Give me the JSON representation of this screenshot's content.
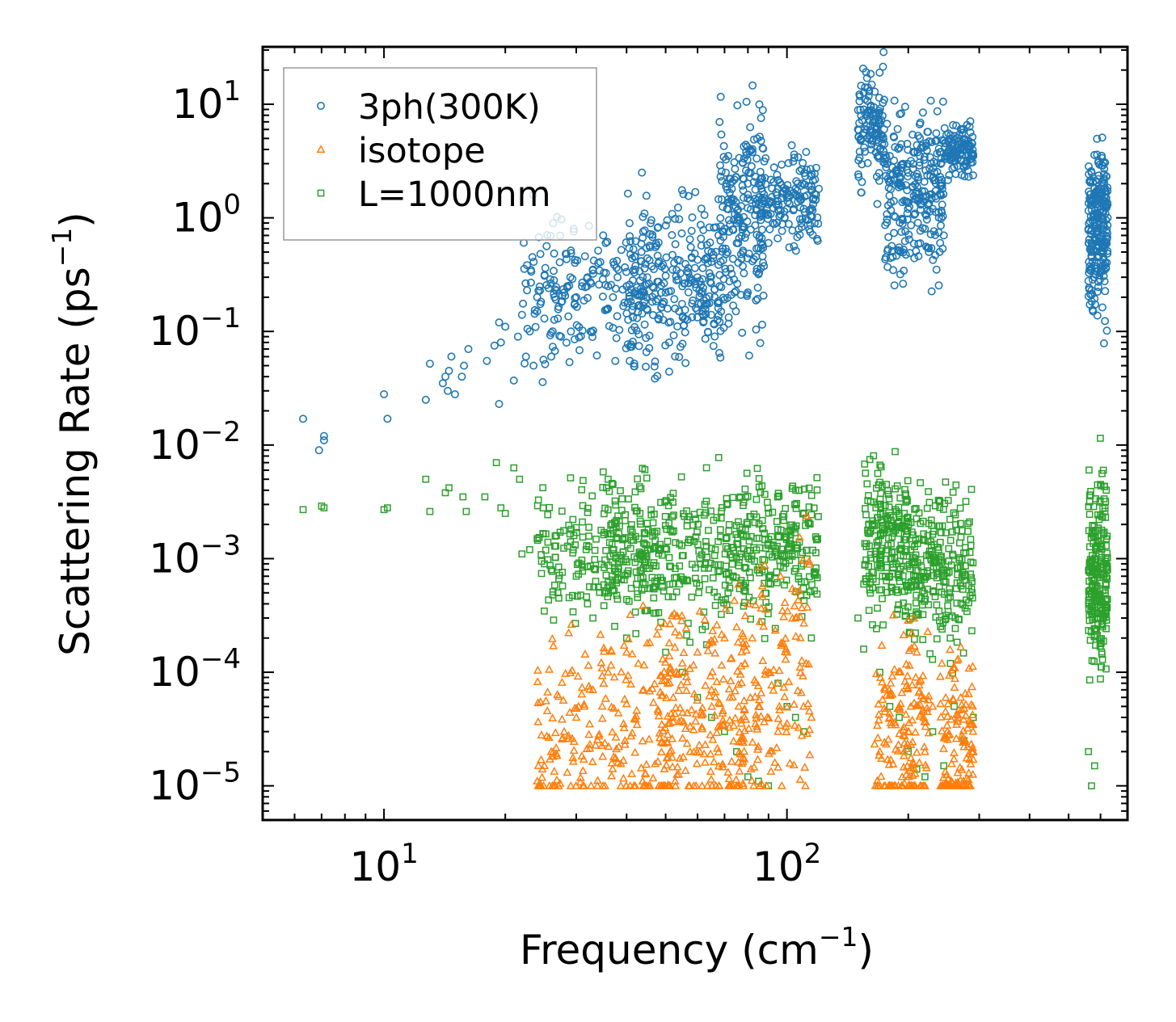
{
  "chart_data": {
    "type": "scatter",
    "xscale": "log",
    "yscale": "log",
    "xlabel": "Frequency (cm",
    "xlabel_sup": "−1",
    "xlabel_tail": ")",
    "ylabel": "Scattering Rate (ps",
    "ylabel_sup": "−1",
    "ylabel_tail": ")",
    "xlim": [
      5,
      700
    ],
    "ylim": [
      5e-06,
      32
    ],
    "xticks": [
      {
        "value": 10,
        "base": "10",
        "exp": "1"
      },
      {
        "value": 100,
        "base": "10",
        "exp": "2"
      }
    ],
    "yticks": [
      {
        "value": 1e-05,
        "base": "10",
        "exp": "−5"
      },
      {
        "value": 0.0001,
        "base": "10",
        "exp": "−4"
      },
      {
        "value": 0.001,
        "base": "10",
        "exp": "−3"
      },
      {
        "value": 0.01,
        "base": "10",
        "exp": "−2"
      },
      {
        "value": 0.1,
        "base": "10",
        "exp": "−1"
      },
      {
        "value": 1,
        "base": "10",
        "exp": "0"
      },
      {
        "value": 10,
        "base": "10",
        "exp": "1"
      }
    ],
    "legend_position": "top-left",
    "series": [
      {
        "name": "3ph(300K)",
        "marker": "circle",
        "color": "#1f77b4",
        "points": [
          [
            6.3,
            0.017
          ],
          [
            6.9,
            0.009
          ],
          [
            7.1,
            0.011
          ],
          [
            7.1,
            0.012
          ],
          [
            10,
            0.028
          ],
          [
            10.2,
            0.017
          ],
          [
            12.7,
            0.025
          ],
          [
            13,
            0.052
          ],
          [
            14,
            0.035
          ],
          [
            14.2,
            0.04
          ],
          [
            14.4,
            0.03
          ],
          [
            14.5,
            0.045
          ],
          [
            14.7,
            0.06
          ],
          [
            15,
            0.028
          ],
          [
            15.6,
            0.04
          ],
          [
            15.8,
            0.05
          ],
          [
            16.2,
            0.07
          ],
          [
            18,
            0.055
          ],
          [
            18.8,
            0.075
          ],
          [
            19.3,
            0.12
          ],
          [
            19.5,
            0.08
          ],
          [
            19.3,
            0.023
          ],
          [
            20,
            0.11
          ],
          [
            21,
            0.037
          ],
          [
            21.5,
            0.09
          ],
          [
            22,
            0.14
          ],
          [
            22.5,
            0.06
          ],
          [
            23,
            0.1
          ],
          [
            23.5,
            0.05
          ],
          [
            24,
            0.2
          ],
          [
            24,
            0.15
          ],
          [
            25,
            0.13
          ],
          [
            26,
            0.06
          ],
          [
            26.5,
            0.2
          ],
          [
            27,
            0.13
          ],
          [
            27.5,
            0.09
          ],
          [
            28,
            0.22
          ],
          [
            28.5,
            0.25
          ],
          [
            29,
            0.3
          ],
          [
            30,
            0.2
          ],
          [
            31,
            0.25
          ],
          [
            32,
            0.3
          ],
          [
            33,
            0.35
          ],
          [
            34,
            0.4
          ],
          [
            35,
            0.7
          ],
          [
            35.5,
            0.6
          ],
          [
            36,
            0.25
          ],
          [
            37,
            0.2
          ],
          [
            37.5,
            0.055
          ],
          [
            38,
            0.3
          ],
          [
            40,
            0.25
          ],
          [
            42,
            0.35
          ],
          [
            45,
            0.3
          ],
          [
            48,
            0.4
          ],
          [
            50,
            0.22
          ],
          [
            51,
            0.08
          ],
          [
            52,
            0.35
          ],
          [
            55,
            0.25
          ],
          [
            58,
            0.45
          ],
          [
            60,
            0.3
          ],
          [
            62,
            0.12
          ],
          [
            65,
            0.5
          ],
          [
            68,
            0.25
          ],
          [
            70,
            0.8
          ],
          [
            71,
            1.2
          ],
          [
            72,
            2.2
          ],
          [
            73,
            1.8
          ],
          [
            75,
            0.9
          ],
          [
            78,
            1.5
          ],
          [
            80,
            2.0
          ],
          [
            85,
            1.3
          ],
          [
            90,
            0.6
          ],
          [
            95,
            1.4
          ],
          [
            100,
            1.5
          ],
          [
            105,
            1.8
          ],
          [
            110,
            1.2
          ],
          [
            115,
            1.9
          ],
          [
            120,
            1.8
          ],
          [
            150,
            6.0
          ],
          [
            155,
            9.0
          ],
          [
            158,
            17
          ],
          [
            160,
            13
          ],
          [
            165,
            7.0
          ],
          [
            170,
            4.0
          ],
          [
            175,
            3.0
          ],
          [
            180,
            3.5
          ],
          [
            190,
            2.0
          ],
          [
            200,
            2.5
          ],
          [
            210,
            1.5
          ],
          [
            220,
            0.8
          ],
          [
            225,
            0.5
          ],
          [
            230,
            1.2
          ],
          [
            235,
            0.35
          ],
          [
            240,
            0.6
          ],
          [
            245,
            0.7
          ],
          [
            250,
            3.5
          ],
          [
            255,
            5.0
          ],
          [
            260,
            2.8
          ],
          [
            270,
            4.0
          ],
          [
            280,
            3.2
          ],
          [
            290,
            3.5
          ],
          [
            560,
            0.8
          ],
          [
            565,
            2.1
          ],
          [
            570,
            0.6
          ],
          [
            575,
            0.15
          ],
          [
            580,
            0.3
          ],
          [
            590,
            1.0
          ],
          [
            600,
            1.8
          ],
          [
            610,
            0.5
          ],
          [
            620,
            1.5
          ],
          [
            625,
            1.0
          ]
        ],
        "clusters": [
          {
            "x": [
              22,
              45
            ],
            "center": 0.22,
            "spread": 0.35,
            "count": 180
          },
          {
            "x": [
              40,
              70
            ],
            "center": 0.27,
            "spread": 0.35,
            "count": 260
          },
          {
            "x": [
              68,
              88
            ],
            "center": 0.9,
            "spread": 0.45,
            "count": 200
          },
          {
            "x": [
              85,
              120
            ],
            "center": 1.5,
            "spread": 0.2,
            "count": 160
          },
          {
            "x": [
              150,
              175
            ],
            "center": 6.0,
            "spread": 0.25,
            "count": 120
          },
          {
            "x": [
              175,
              245
            ],
            "center": 1.8,
            "spread": 0.35,
            "count": 260
          },
          {
            "x": [
              245,
              290
            ],
            "center": 3.8,
            "spread": 0.12,
            "count": 110
          },
          {
            "x": [
              560,
              625
            ],
            "center": 0.85,
            "spread": 0.35,
            "count": 240
          }
        ]
      },
      {
        "name": "isotope",
        "marker": "triangle",
        "color": "#ff7f0e",
        "points": [
          [
            24,
            1.1e-05
          ],
          [
            25,
            1.5e-05
          ],
          [
            26,
            2e-05
          ],
          [
            28,
            3e-05
          ],
          [
            30,
            4e-05
          ],
          [
            33,
            7e-05
          ],
          [
            36,
            0.0001
          ],
          [
            40,
            0.00015
          ],
          [
            45,
            0.00018
          ],
          [
            48,
            0.00025
          ],
          [
            52,
            4e-05
          ],
          [
            55,
            0.00012
          ],
          [
            60,
            0.00015
          ],
          [
            65,
            7e-05
          ],
          [
            70,
            0.0002
          ],
          [
            75,
            0.00025
          ],
          [
            80,
            0.0004
          ],
          [
            82,
            0.0002
          ],
          [
            85,
            5e-05
          ],
          [
            90,
            0.0001
          ],
          [
            95,
            3e-05
          ],
          [
            100,
            0.00015
          ],
          [
            105,
            0.0003
          ],
          [
            110,
            5e-05
          ],
          [
            115,
            4e-05
          ],
          [
            170,
            2e-05
          ],
          [
            180,
            4e-05
          ],
          [
            190,
            0.0001
          ],
          [
            200,
            3e-05
          ],
          [
            210,
            0.00015
          ],
          [
            220,
            2e-05
          ],
          [
            230,
            5e-05
          ],
          [
            250,
            3e-05
          ],
          [
            270,
            6e-05
          ],
          [
            290,
            2e-05
          ]
        ],
        "clusters": [
          {
            "x": [
              24,
              52
            ],
            "center": 3e-05,
            "spread": 0.45,
            "count": 220
          },
          {
            "x": [
              48,
              80
            ],
            "center": 4e-05,
            "spread": 0.5,
            "count": 200
          },
          {
            "x": [
              75,
              115
            ],
            "center": 6e-05,
            "spread": 0.55,
            "count": 140
          },
          {
            "x": [
              165,
              225
            ],
            "center": 3e-05,
            "spread": 0.45,
            "count": 170
          },
          {
            "x": [
              240,
              290
            ],
            "center": 2.5e-05,
            "spread": 0.4,
            "count": 130
          }
        ]
      },
      {
        "name": "L=1000nm",
        "marker": "square",
        "color": "#2ca02c",
        "points": [
          [
            6.3,
            0.0027
          ],
          [
            7,
            0.0029
          ],
          [
            7.1,
            0.0028
          ],
          [
            10,
            0.0027
          ],
          [
            10.2,
            0.0028
          ],
          [
            12.7,
            0.005
          ],
          [
            13,
            0.0026
          ],
          [
            14.2,
            0.0038
          ],
          [
            14.5,
            0.0042
          ],
          [
            15.7,
            0.0035
          ],
          [
            16,
            0.0026
          ],
          [
            17.8,
            0.0035
          ],
          [
            19,
            0.007
          ],
          [
            19.5,
            0.0028
          ],
          [
            20,
            0.0025
          ],
          [
            21,
            0.0063
          ],
          [
            21.7,
            0.005
          ],
          [
            22,
            0.0011
          ],
          [
            23,
            0.0012
          ],
          [
            24,
            0.0015
          ],
          [
            25,
            0.0009
          ],
          [
            26,
            0.0008
          ],
          [
            27,
            0.0005
          ],
          [
            30,
            0.0007
          ],
          [
            32,
            0.0004
          ],
          [
            33,
            0.0003
          ],
          [
            35,
            0.0058
          ],
          [
            36,
            0.005
          ],
          [
            37,
            0.0045
          ],
          [
            40,
            0.0002
          ],
          [
            45,
            0.00035
          ],
          [
            50,
            0.00015
          ],
          [
            55,
            0.0001
          ],
          [
            60,
            6e-05
          ],
          [
            65,
            4e-05
          ],
          [
            70,
            3e-05
          ],
          [
            75,
            2e-05
          ],
          [
            80,
            1.2e-05
          ],
          [
            85,
            1.1e-05
          ],
          [
            90,
            1e-05
          ],
          [
            95,
            8e-05
          ],
          [
            100,
            5e-05
          ],
          [
            105,
            4e-05
          ],
          [
            110,
            3e-05
          ],
          [
            115,
            0.0002
          ],
          [
            150,
            0.0003
          ],
          [
            155,
            0.00016
          ],
          [
            160,
            0.0007
          ],
          [
            170,
            0.0001
          ],
          [
            180,
            5e-05
          ],
          [
            190,
            4e-05
          ],
          [
            200,
            2e-05
          ],
          [
            210,
            1.4e-05
          ],
          [
            220,
            1.2e-05
          ],
          [
            230,
            3e-05
          ],
          [
            245,
            1.5e-05
          ],
          [
            260,
            5e-05
          ],
          [
            275,
            2.5e-05
          ],
          [
            290,
            4e-05
          ],
          [
            560,
            2e-05
          ],
          [
            570,
            1e-05
          ],
          [
            580,
            1.5e-05
          ],
          [
            600,
            0.0045
          ],
          [
            610,
            0.006
          ],
          [
            620,
            0.004
          ]
        ],
        "clusters": [
          {
            "x": [
              24,
              45
            ],
            "center": 0.0012,
            "spread": 0.3,
            "count": 160
          },
          {
            "x": [
              35,
              80
            ],
            "center": 0.0011,
            "spread": 0.3,
            "count": 320
          },
          {
            "x": [
              78,
              120
            ],
            "center": 0.0012,
            "spread": 0.3,
            "count": 200
          },
          {
            "x": [
              155,
              200
            ],
            "center": 0.0014,
            "spread": 0.3,
            "count": 200
          },
          {
            "x": [
              195,
              290
            ],
            "center": 0.0008,
            "spread": 0.3,
            "count": 260
          },
          {
            "x": [
              560,
              625
            ],
            "center": 0.0007,
            "spread": 0.4,
            "count": 240
          }
        ]
      }
    ]
  }
}
